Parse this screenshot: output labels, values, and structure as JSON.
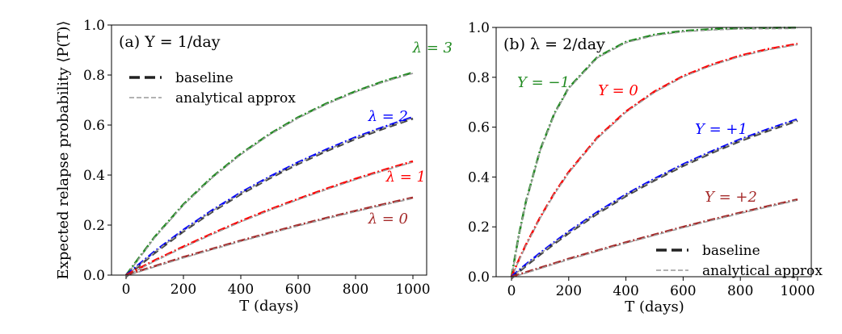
{
  "chart_data": [
    {
      "type": "line",
      "panel_label": "(a) Y = 1/day",
      "xlabel": "T (days)",
      "ylabel": "Expected relapse probability ⟨P(T)⟩",
      "xlim": [
        -60,
        1050
      ],
      "ylim": [
        0,
        1
      ],
      "xticks": [
        "0",
        "200",
        "400",
        "600",
        "800",
        "1000"
      ],
      "yticks": [
        "0.0",
        "0.2",
        "0.4",
        "0.6",
        "0.8",
        "1.0"
      ],
      "grid": false,
      "legend": {
        "placement": "upper-left",
        "entries": [
          "baseline",
          "analytical approx"
        ]
      },
      "x": [
        0,
        100,
        200,
        300,
        400,
        500,
        600,
        700,
        800,
        900,
        1000
      ],
      "series": [
        {
          "name": "λ = 3",
          "color": "#228B22",
          "values": [
            0,
            0.153,
            0.283,
            0.392,
            0.485,
            0.564,
            0.631,
            0.687,
            0.735,
            0.776,
            0.81
          ]
        },
        {
          "name": "λ = 2",
          "color": "#0000FF",
          "baseline": true,
          "values": [
            0,
            0.095,
            0.181,
            0.259,
            0.33,
            0.393,
            0.451,
            0.503,
            0.551,
            0.593,
            0.632
          ]
        },
        {
          "name": "λ = 1",
          "color": "#FF0000",
          "values": [
            0,
            0.059,
            0.114,
            0.166,
            0.216,
            0.262,
            0.305,
            0.346,
            0.385,
            0.421,
            0.455
          ]
        },
        {
          "name": "λ = 0",
          "color": "#A52A2A",
          "values": [
            0,
            0.036,
            0.072,
            0.105,
            0.138,
            0.169,
            0.2,
            0.229,
            0.257,
            0.284,
            0.31
          ]
        }
      ]
    },
    {
      "type": "line",
      "panel_label": "(b) λ = 2/day",
      "xlabel": "T (days)",
      "ylabel": "",
      "xlim": [
        -60,
        1050
      ],
      "ylim": [
        0,
        1
      ],
      "xticks": [
        "0",
        "200",
        "400",
        "600",
        "800",
        "1000"
      ],
      "yticks": [
        "0.0",
        "0.2",
        "0.4",
        "0.6",
        "0.8",
        "1.0"
      ],
      "grid": false,
      "legend": {
        "placement": "lower-right",
        "entries": [
          "baseline",
          "analytical approx"
        ]
      },
      "x": [
        0,
        25,
        50,
        100,
        150,
        200,
        300,
        400,
        500,
        600,
        700,
        800,
        900,
        1000
      ],
      "series": [
        {
          "name": "Y = −1",
          "color": "#228B22",
          "values": [
            0,
            0.163,
            0.299,
            0.508,
            0.655,
            0.758,
            0.881,
            0.942,
            0.971,
            0.986,
            0.993,
            0.997,
            0.998,
            0.999
          ]
        },
        {
          "name": "Y = 0",
          "color": "#FF0000",
          "values": [
            0,
            0.066,
            0.127,
            0.238,
            0.335,
            0.42,
            0.558,
            0.663,
            0.743,
            0.805,
            0.851,
            0.887,
            0.914,
            0.934
          ]
        },
        {
          "name": "Y = +1",
          "color": "#0000FF",
          "baseline": true,
          "values": [
            0,
            0.025,
            0.049,
            0.095,
            0.139,
            0.181,
            0.259,
            0.33,
            0.393,
            0.451,
            0.503,
            0.551,
            0.593,
            0.632
          ]
        },
        {
          "name": "Y = +2",
          "color": "#A52A2A",
          "values": [
            0,
            0.009,
            0.018,
            0.036,
            0.054,
            0.072,
            0.105,
            0.138,
            0.169,
            0.2,
            0.229,
            0.257,
            0.284,
            0.31
          ]
        }
      ]
    }
  ]
}
